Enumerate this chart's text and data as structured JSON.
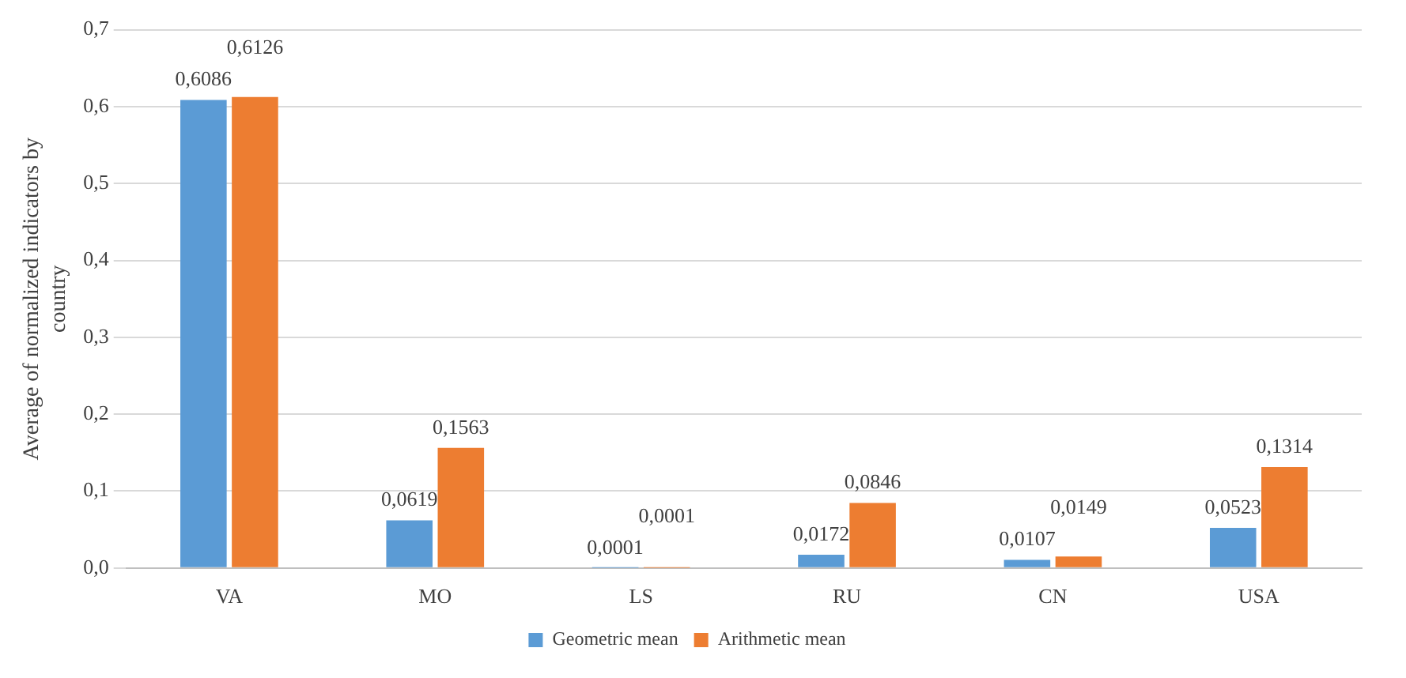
{
  "chart_data": {
    "type": "bar",
    "ylabel": "Average of normalized indicators by country",
    "categories": [
      "VA",
      "MO",
      "LS",
      "RU",
      "CN",
      "USA"
    ],
    "series": [
      {
        "name": "Geometric mean",
        "color": "#5b9bd5",
        "values": [
          0.6086,
          0.0619,
          0.0001,
          0.0172,
          0.0107,
          0.0523
        ],
        "value_labels": [
          "0,6086",
          "0,0619",
          "0,0001",
          "0,0172",
          "0,0107",
          "0,0523"
        ]
      },
      {
        "name": "Arithmetic mean",
        "color": "#ed7d31",
        "values": [
          0.6126,
          0.1563,
          0.0001,
          0.0846,
          0.0149,
          0.1314
        ],
        "value_labels": [
          "0,6126",
          "0,1563",
          "0,0001",
          "0,0846",
          "0,0149",
          "0,1314"
        ]
      }
    ],
    "ylim": [
      0,
      0.7
    ],
    "yticks": [
      {
        "value": 0,
        "label": "0,0"
      },
      {
        "value": 0.1,
        "label": "0,1"
      },
      {
        "value": 0.2,
        "label": "0,2"
      },
      {
        "value": 0.3,
        "label": "0,3"
      },
      {
        "value": 0.4,
        "label": "0,4"
      },
      {
        "value": 0.5,
        "label": "0,5"
      },
      {
        "value": 0.6,
        "label": "0,6"
      },
      {
        "value": 0.7,
        "label": "0,7"
      }
    ],
    "grid": "y",
    "legend": "bottom"
  }
}
